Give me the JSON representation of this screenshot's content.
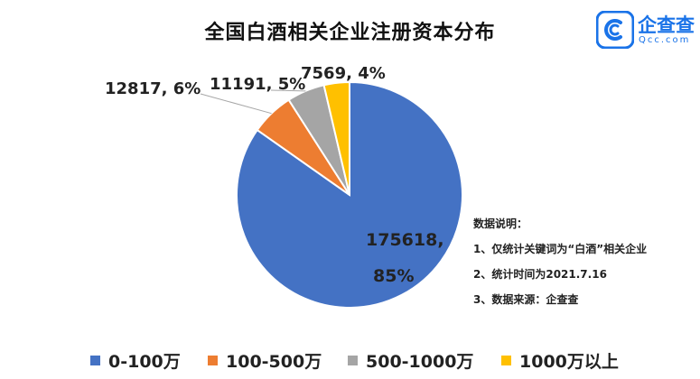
{
  "title": "全国白酒相关企业注册资本分布",
  "logo": {
    "name": "企查查",
    "sub": "Qcc.com",
    "icon": "qcc-logo-icon",
    "color": "#1a73e8"
  },
  "notes": {
    "heading": "数据说明：",
    "lines": [
      "1、仅统计关键词为“白酒”相关企业",
      "2、统计时间为2021.7.16",
      "3、数据来源：企查查"
    ]
  },
  "chart_data": {
    "type": "pie",
    "title": "全国白酒相关企业注册资本分布",
    "legend_position": "bottom",
    "slices": [
      {
        "label": "0-100万",
        "value": 175618,
        "percent": "85%",
        "color": "#4472C4",
        "data_label": "175618, 85%"
      },
      {
        "label": "100-500万",
        "value": 12817,
        "percent": "6%",
        "color": "#ED7D31",
        "data_label": "12817, 6%"
      },
      {
        "label": "500-1000万",
        "value": 11191,
        "percent": "5%",
        "color": "#A5A5A5",
        "data_label": "11191, 5%"
      },
      {
        "label": "1000万以上",
        "value": 7569,
        "percent": "4%",
        "color": "#FFC000",
        "data_label": "7569, 4%"
      }
    ]
  }
}
